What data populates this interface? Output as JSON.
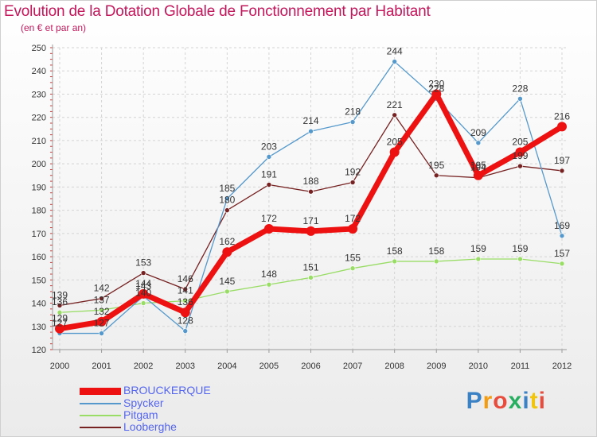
{
  "title": "Evolution de la Dotation Globale de Fonctionnement par Habitant",
  "subtitle": "(en € et par an)",
  "brand": "Proxiti",
  "chart_data": {
    "type": "line",
    "title": "Evolution de la Dotation Globale de Fonctionnement par Habitant",
    "subtitle": "(en € et par an)",
    "xlabel": "",
    "ylabel": "",
    "x": [
      "2000",
      "2001",
      "2002",
      "2003",
      "2004",
      "2005",
      "2006",
      "2007",
      "2008",
      "2009",
      "2010",
      "2011",
      "2012"
    ],
    "ylim": [
      120,
      250
    ],
    "yticks": [
      120,
      130,
      140,
      150,
      160,
      170,
      180,
      190,
      200,
      210,
      220,
      230,
      240,
      250
    ],
    "grid": true,
    "legend": "bottom-left",
    "series": [
      {
        "name": "BROUCKERQUE",
        "color": "#ee1111",
        "values": [
          129,
          132,
          144,
          136,
          162,
          172,
          171,
          172,
          205,
          230,
          195,
          205,
          216
        ]
      },
      {
        "name": "Spycker",
        "color": "#5599cc",
        "values": [
          127,
          127,
          143,
          128,
          185,
          203,
          214,
          218,
          244,
          228,
          209,
          228,
          169
        ]
      },
      {
        "name": "Pitgam",
        "color": "#99dd66",
        "values": [
          136,
          137,
          140,
          141,
          145,
          148,
          151,
          155,
          158,
          158,
          159,
          159,
          157
        ]
      },
      {
        "name": "Looberghe",
        "color": "#772222",
        "values": [
          139,
          142,
          153,
          146,
          180,
          191,
          188,
          192,
          221,
          195,
          194,
          199,
          197
        ]
      }
    ]
  }
}
